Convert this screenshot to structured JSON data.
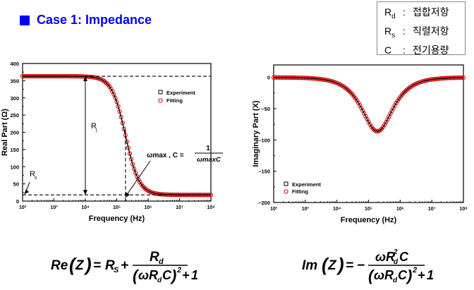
{
  "title": "Case 1: Impedance",
  "colors": {
    "accent": "#0000ff",
    "fit_line": "#000000",
    "fit_marker": "#e00000"
  },
  "definitions": [
    {
      "symbol": "R",
      "sub": "d",
      "desc": "접합저항"
    },
    {
      "symbol": "R",
      "sub": "s",
      "desc": "직렬저항"
    },
    {
      "symbol": "C",
      "sub": "",
      "desc": "전기용량"
    }
  ],
  "chart_data": [
    {
      "type": "scatter",
      "xlabel": "Frequency (Hz)",
      "ylabel": "Real Part (Ω)",
      "xscale": "log",
      "xlim": [
        100,
        100000000
      ],
      "ylim": [
        0,
        400
      ],
      "yticks": [
        0,
        50,
        100,
        150,
        200,
        250,
        300,
        350,
        400
      ],
      "xticks": [
        "10²",
        "10³",
        "10⁴",
        "10⁵",
        "10⁶",
        "10⁷",
        "10⁸"
      ],
      "legend": [
        "Experiment",
        "Fitting"
      ],
      "legend_position": "right",
      "model": {
        "Rs": 18,
        "Rd": 345,
        "fc": 190000
      },
      "annotations": {
        "rj_label": "R",
        "rj_sub": "j",
        "rs_label": "R",
        "rs_sub": "s",
        "omega_text": "ωmax , C =",
        "frac_num": "1",
        "frac_den": "ωmaxC"
      }
    },
    {
      "type": "scatter",
      "xlabel": "Frequency (Hz)",
      "ylabel": "Imaginary Part (X)",
      "xscale": "log",
      "xlim": [
        100,
        100000000
      ],
      "ylim": [
        -200,
        20
      ],
      "yticks": [
        0,
        -50,
        -100,
        -150,
        -200
      ],
      "xticks": [
        "10²",
        "10³",
        "10⁴",
        "10⁵",
        "10⁶",
        "10⁷",
        "10⁸"
      ],
      "legend": [
        "Experiment",
        "Fitting"
      ],
      "legend_position": "bottom-left",
      "model": {
        "Rd": 345,
        "fc": 190000
      }
    }
  ],
  "formulas": {
    "real": "Re(Z) = RS + Rd / ((ωRdC)² + 1)",
    "imag": "Im(Z) = −ωRd²C / ((ωRdC)² + 1)"
  }
}
